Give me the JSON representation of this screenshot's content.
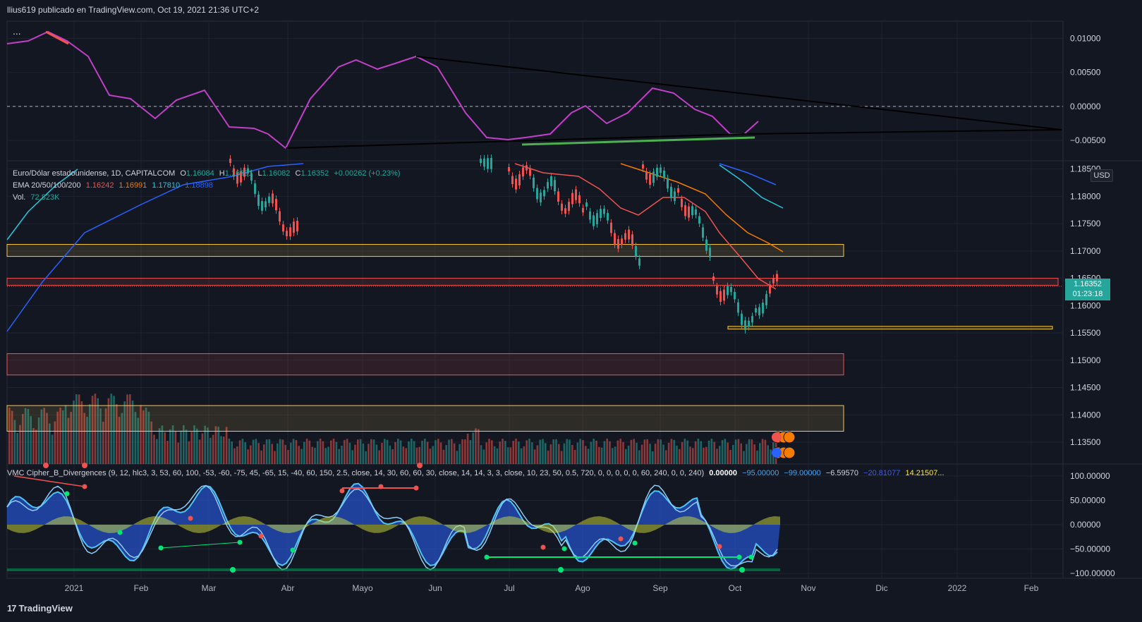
{
  "header": {
    "title": "llius619 publicado en TradingView.com, Oct 19, 2021 21:36 UTC+2",
    "more": "..."
  },
  "main_legend": {
    "symbol": "Euro/Dólar estadounidense, 1D, CAPITALCOM",
    "o_label": "O",
    "o": "1.16084",
    "h_label": "H",
    "h": "1.16691",
    "l_label": "L",
    "l": "1.16082",
    "c_label": "C",
    "c": "1.16352",
    "change": "+0.00262 (+0.23%)",
    "ema_label": "EMA 20/50/100/200",
    "ema20": "1.16242",
    "ema50": "1.16991",
    "ema100": "1.17810",
    "ema200": "1.18898",
    "vol_label": "Vol.",
    "vol": "72.823K"
  },
  "osc_legend": {
    "name": "VMC Cipher_B_Divergences (9, 12, hlc3, 3, 53, 60, 100, -53, -60, -75, 45, -65, 15, -40, 60, 150, 2.5, close, 14, 30, 60, 60, 30, close, 14, 14, 3, 3, close, 10, 23, 50, 0.5, 720, 0, 0, 0, 0, 0, 60, 240, 0, 0, 240)",
    "v1": "0.00000",
    "v2": "−95.00000",
    "v3": "−99.00000",
    "v4": "−6.59570",
    "v5": "−20.81077",
    "v6": "14.21507..."
  },
  "price_axis": {
    "currency": "USD",
    "last_price": "1.16352",
    "countdown": "01:23:18",
    "ticks": [
      "1.18500",
      "1.18000",
      "1.17500",
      "1.17000",
      "1.16500",
      "1.16000",
      "1.15500",
      "1.15000",
      "1.14500",
      "1.14000",
      "1.13500"
    ]
  },
  "top_axis": {
    "ticks": [
      "0.01000",
      "0.00500",
      "0.00000",
      "−0.00500"
    ]
  },
  "osc_axis": {
    "ticks": [
      "100.00000",
      "50.00000",
      "0.00000",
      "−50.00000",
      "−100.00000"
    ]
  },
  "time_axis": {
    "labels": [
      "2021",
      "Feb",
      "Mar",
      "Abr",
      "Mayo",
      "Jun",
      "Jul",
      "Ago",
      "Sep",
      "Oct",
      "Nov",
      "Dic",
      "2022",
      "Feb"
    ]
  },
  "brand": {
    "logo": "17",
    "name": "TradingView"
  },
  "colors": {
    "background": "#131722",
    "up": "#26a69a",
    "down": "#ef5350",
    "ema20": "#ef5350",
    "ema50": "#f57c00",
    "ema100": "#26c6da",
    "ema200": "#2962ff",
    "zone_yellow": "#f9c846",
    "zone_red": "#ef5350",
    "oscillator": "#c040c8"
  },
  "chart_data": [
    {
      "type": "line",
      "pane": "top-oscillator",
      "x": [
        "2020-12-01",
        "2020-12-21",
        "2021-01-10",
        "2021-01-31",
        "2021-02-20",
        "2021-03-12",
        "2021-03-31",
        "2021-04-20",
        "2021-05-10",
        "2021-05-27",
        "2021-06-16",
        "2021-07-05",
        "2021-07-25",
        "2021-08-14",
        "2021-09-03",
        "2021-09-22",
        "2021-10-06",
        "2021-10-18"
      ],
      "values": [
        0.007,
        0.0098,
        0.006,
        0.002,
        -0.002,
        0.001,
        -0.006,
        0.003,
        0.0045,
        0.006,
        0.001,
        -0.006,
        -0.005,
        -0.002,
        0.001,
        -0.002,
        -0.006,
        -0.004
      ],
      "ylim": [
        -0.008,
        0.0115
      ]
    },
    {
      "type": "line",
      "pane": "price",
      "series": [
        {
          "name": "EMA 20",
          "values": [
            1.1624
          ]
        },
        {
          "name": "EMA 50",
          "values": [
            1.1699
          ]
        },
        {
          "name": "EMA 100",
          "values": [
            1.1781
          ]
        },
        {
          "name": "EMA 200",
          "values": [
            1.189
          ]
        }
      ],
      "price_zones": [
        {
          "color": "yellow",
          "from": 1.169,
          "to": 1.1712
        },
        {
          "color": "red",
          "from": 1.1637,
          "to": 1.165
        },
        {
          "color": "yellow",
          "from": 1.1557,
          "to": 1.1562
        },
        {
          "color": "red",
          "from": 1.1473,
          "to": 1.1512
        },
        {
          "color": "yellow",
          "from": 1.137,
          "to": 1.1417
        }
      ],
      "ylim": [
        1.131,
        1.1865
      ]
    },
    {
      "type": "area",
      "pane": "cipher-b",
      "ylim": [
        -110,
        110
      ]
    }
  ]
}
